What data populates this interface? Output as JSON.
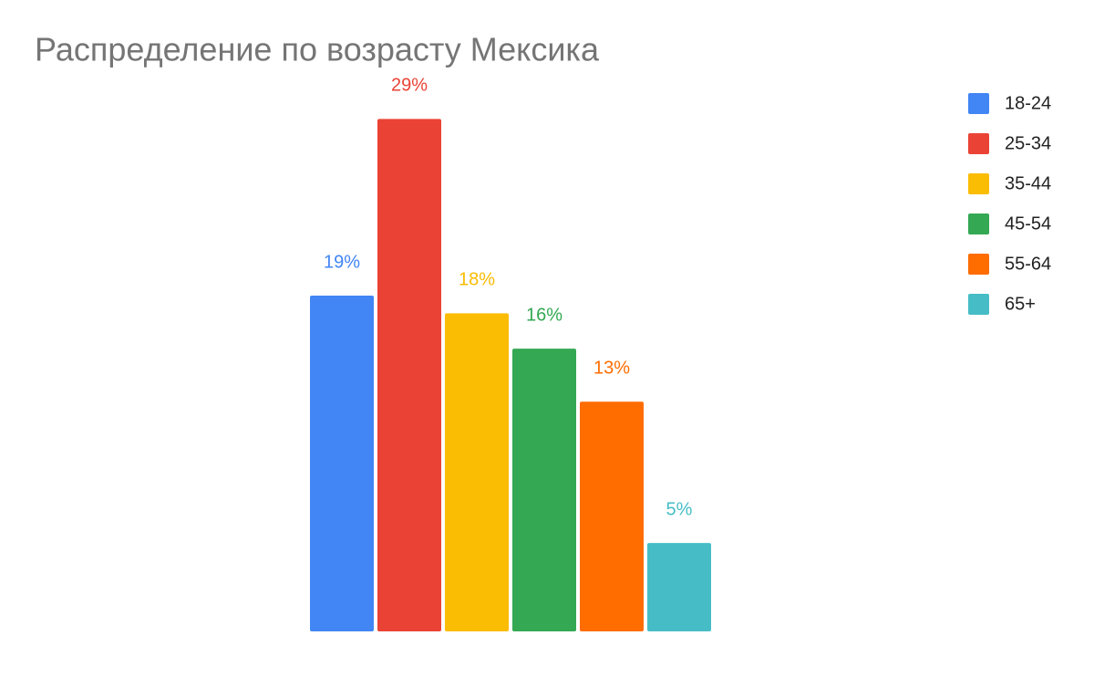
{
  "chart_data": {
    "type": "bar",
    "title": "Распределение по возрасту Мексика",
    "categories": [
      null
    ],
    "series": [
      {
        "name": "18-24",
        "color": "#4285f4",
        "values": [
          19
        ],
        "value_labels": [
          "19%"
        ]
      },
      {
        "name": "25-34",
        "color": "#ea4335",
        "values": [
          29
        ],
        "value_labels": [
          "29%"
        ]
      },
      {
        "name": "35-44",
        "color": "#fbbc04",
        "values": [
          18
        ],
        "value_labels": [
          "18%"
        ]
      },
      {
        "name": "45-54",
        "color": "#34a853",
        "values": [
          16
        ],
        "value_labels": [
          "16%"
        ]
      },
      {
        "name": "55-64",
        "color": "#ff6d01",
        "values": [
          13
        ],
        "value_labels": [
          "13%"
        ]
      },
      {
        "name": "65+",
        "color": "#46bdc6",
        "values": [
          5
        ],
        "value_labels": [
          "5%"
        ]
      }
    ],
    "ylim": [
      0,
      30
    ],
    "legend": "right"
  }
}
